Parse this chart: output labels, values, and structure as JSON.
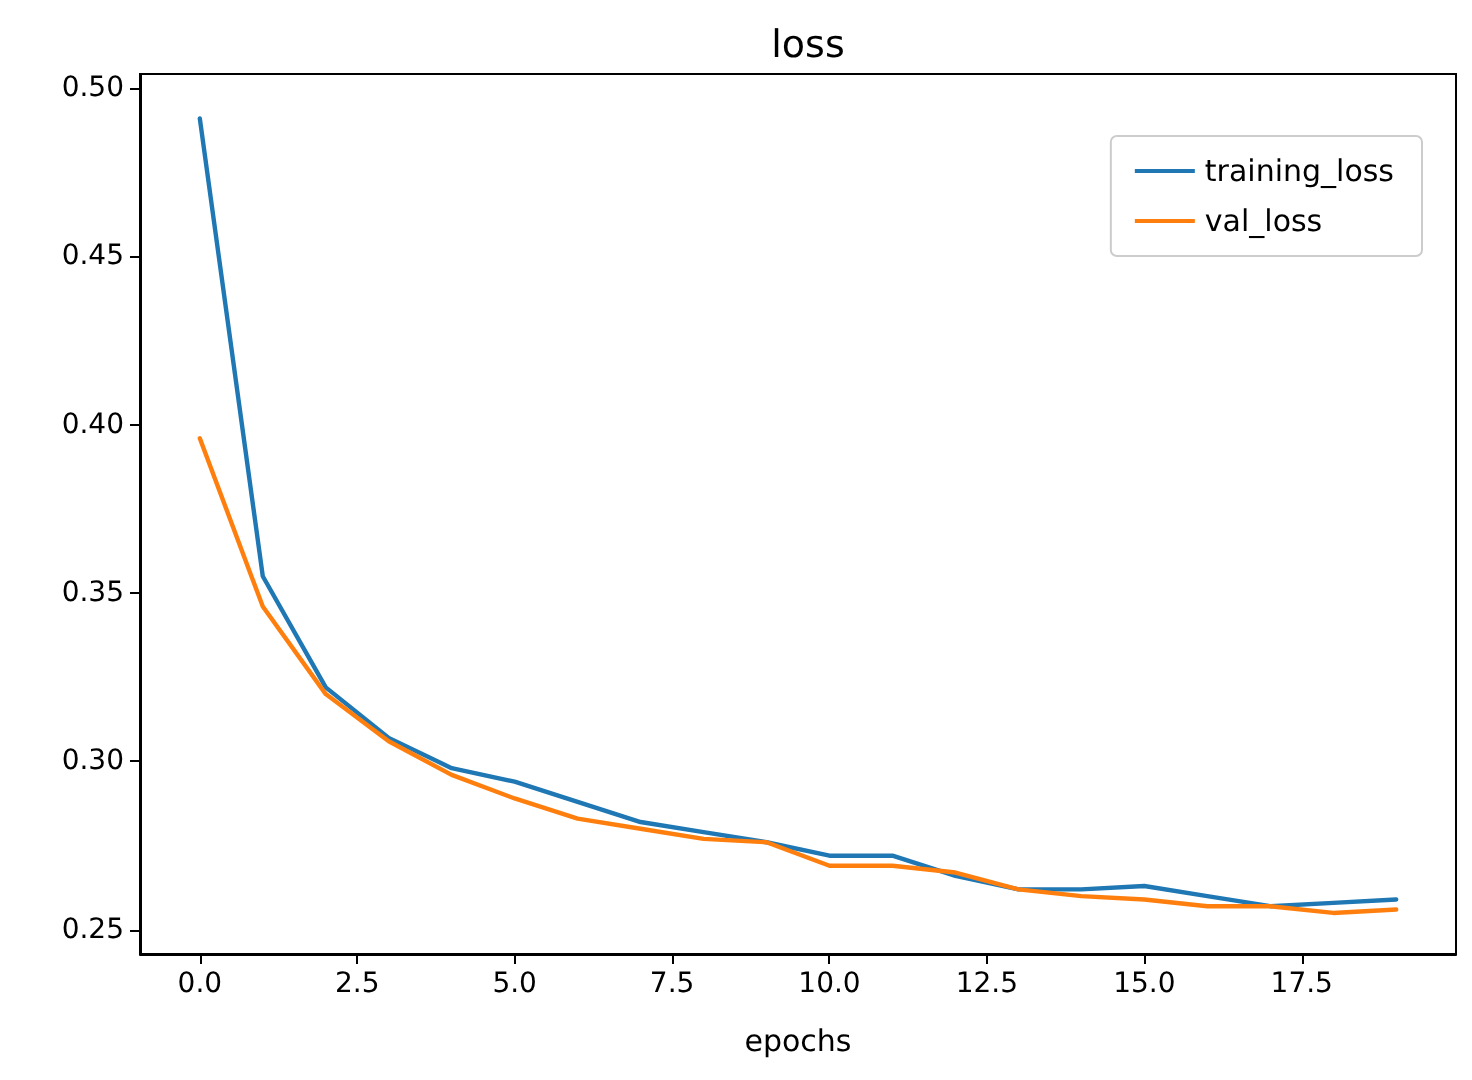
{
  "chart_data": {
    "type": "line",
    "title": "loss",
    "xlabel": "epochs",
    "x": [
      0,
      1,
      2,
      3,
      4,
      5,
      6,
      7,
      8,
      9,
      10,
      11,
      12,
      13,
      14,
      15,
      16,
      17,
      18,
      19
    ],
    "series": [
      {
        "name": "training_loss",
        "color": "#1f77b4",
        "values": [
          0.491,
          0.355,
          0.322,
          0.307,
          0.298,
          0.294,
          0.288,
          0.282,
          0.279,
          0.276,
          0.272,
          0.272,
          0.266,
          0.262,
          0.262,
          0.263,
          0.26,
          0.257,
          0.258,
          0.259
        ]
      },
      {
        "name": "val_loss",
        "color": "#ff7f0e",
        "values": [
          0.396,
          0.346,
          0.32,
          0.306,
          0.296,
          0.289,
          0.283,
          0.28,
          0.277,
          0.276,
          0.269,
          0.269,
          0.267,
          0.262,
          0.26,
          0.259,
          0.257,
          0.257,
          0.255,
          0.256
        ]
      }
    ],
    "xlim": [
      -0.95,
      19.95
    ],
    "xticks": [
      {
        "value": 0,
        "label": "0.0"
      },
      {
        "value": 2.5,
        "label": "2.5"
      },
      {
        "value": 5,
        "label": "5.0"
      },
      {
        "value": 7.5,
        "label": "7.5"
      },
      {
        "value": 10,
        "label": "10.0"
      },
      {
        "value": 12.5,
        "label": "12.5"
      },
      {
        "value": 15,
        "label": "15.0"
      },
      {
        "value": 17.5,
        "label": "17.5"
      }
    ],
    "ylim": [
      0.2428,
      0.5042
    ],
    "yticks": [
      {
        "value": 0.25,
        "label": "0.25"
      },
      {
        "value": 0.3,
        "label": "0.30"
      },
      {
        "value": 0.35,
        "label": "0.35"
      },
      {
        "value": 0.4,
        "label": "0.40"
      },
      {
        "value": 0.45,
        "label": "0.45"
      },
      {
        "value": 0.5,
        "label": "0.50"
      }
    ],
    "legend": "top right",
    "grid": false,
    "marker": "none",
    "line_style": "solid"
  }
}
